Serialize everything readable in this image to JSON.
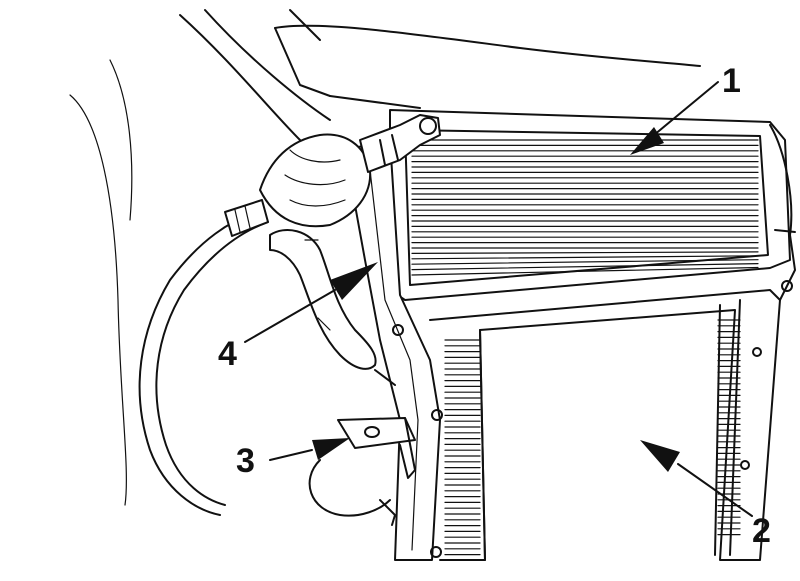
{
  "callouts": [
    {
      "label": "1",
      "target": "radiator-core"
    },
    {
      "label": "2",
      "target": "lower-frame"
    },
    {
      "label": "3",
      "target": "mounting-bracket"
    },
    {
      "label": "4",
      "target": "side-support"
    }
  ],
  "colors": {
    "ink": "#111111",
    "background": "#ffffff"
  }
}
